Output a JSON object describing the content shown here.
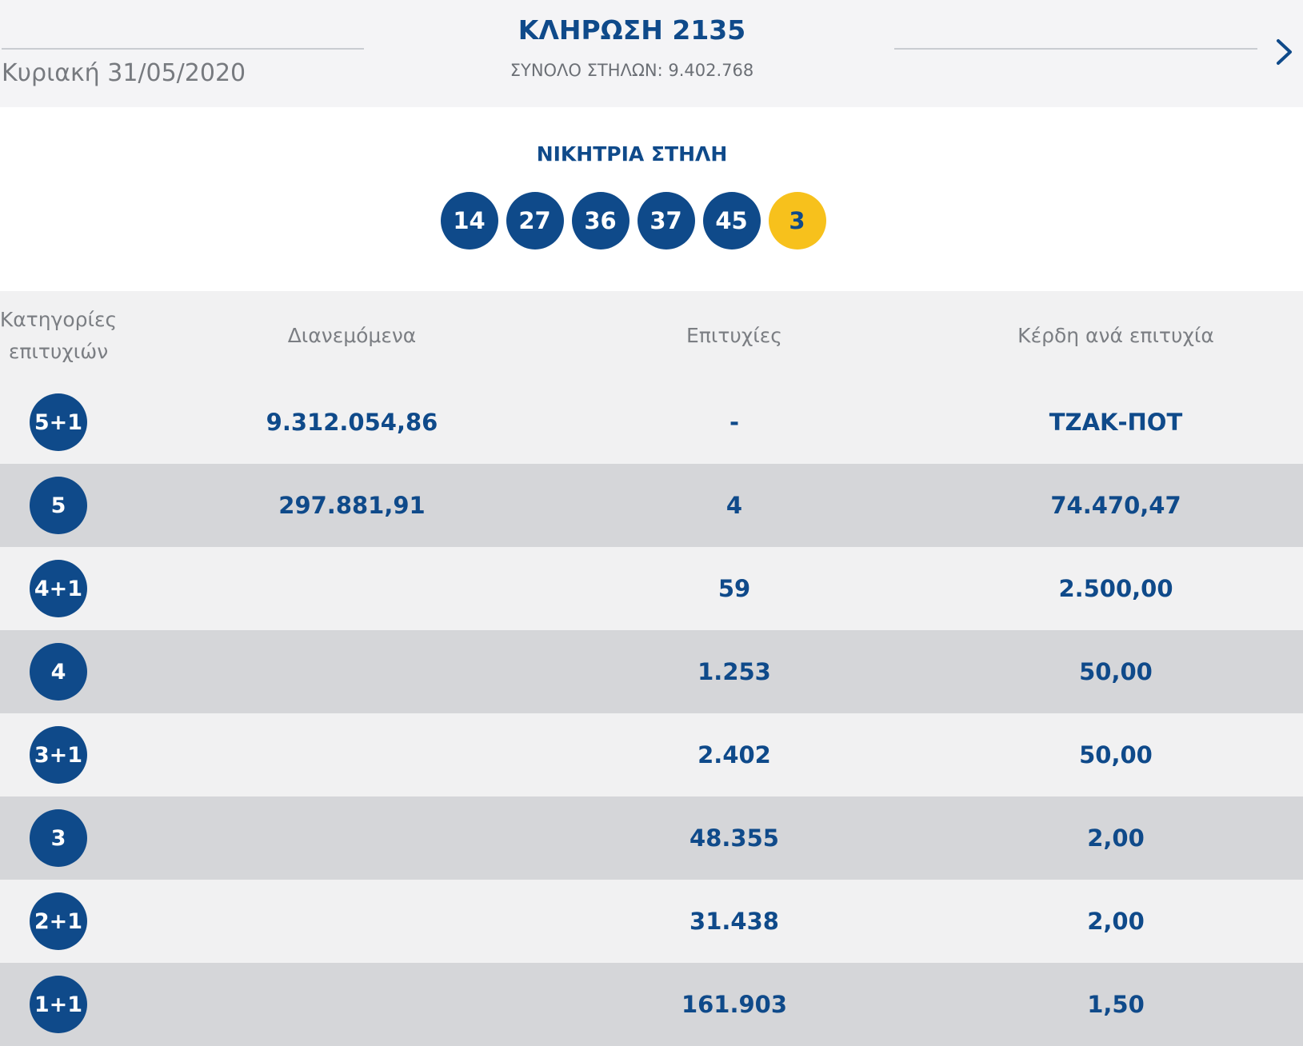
{
  "header": {
    "date": "Κυριακή 31/05/2020",
    "title": "ΚΛΗΡΩΣΗ 2135",
    "total_columns": "ΣΥΝΟΛΟ ΣΤΗΛΩΝ: 9.402.768",
    "next_icon": "chevron-right-icon"
  },
  "winning": {
    "title": "ΝΙΚΗΤΡΙΑ ΣΤΗΛΗ",
    "numbers": [
      "14",
      "27",
      "36",
      "37",
      "45"
    ],
    "joker": "3",
    "colors": {
      "ball": "#0f4a8a",
      "joker": "#f7c11c"
    }
  },
  "table": {
    "headers": {
      "category_line1": "Κατηγορίες",
      "category_line2": "επιτυχιών",
      "distributed": "Διανεμόμενα",
      "winners": "Επιτυχίες",
      "prize": "Κέρδη ανά επιτυχία"
    },
    "rows": [
      {
        "category": "5+1",
        "distributed": "9.312.054,86",
        "winners": "-",
        "prize": "ΤΖΑΚ-ΠΟΤ"
      },
      {
        "category": "5",
        "distributed": "297.881,91",
        "winners": "4",
        "prize": "74.470,47"
      },
      {
        "category": "4+1",
        "distributed": "",
        "winners": "59",
        "prize": "2.500,00"
      },
      {
        "category": "4",
        "distributed": "",
        "winners": "1.253",
        "prize": "50,00"
      },
      {
        "category": "3+1",
        "distributed": "",
        "winners": "2.402",
        "prize": "50,00"
      },
      {
        "category": "3",
        "distributed": "",
        "winners": "48.355",
        "prize": "2,00"
      },
      {
        "category": "2+1",
        "distributed": "",
        "winners": "31.438",
        "prize": "2,00"
      },
      {
        "category": "1+1",
        "distributed": "",
        "winners": "161.903",
        "prize": "1,50"
      }
    ]
  }
}
